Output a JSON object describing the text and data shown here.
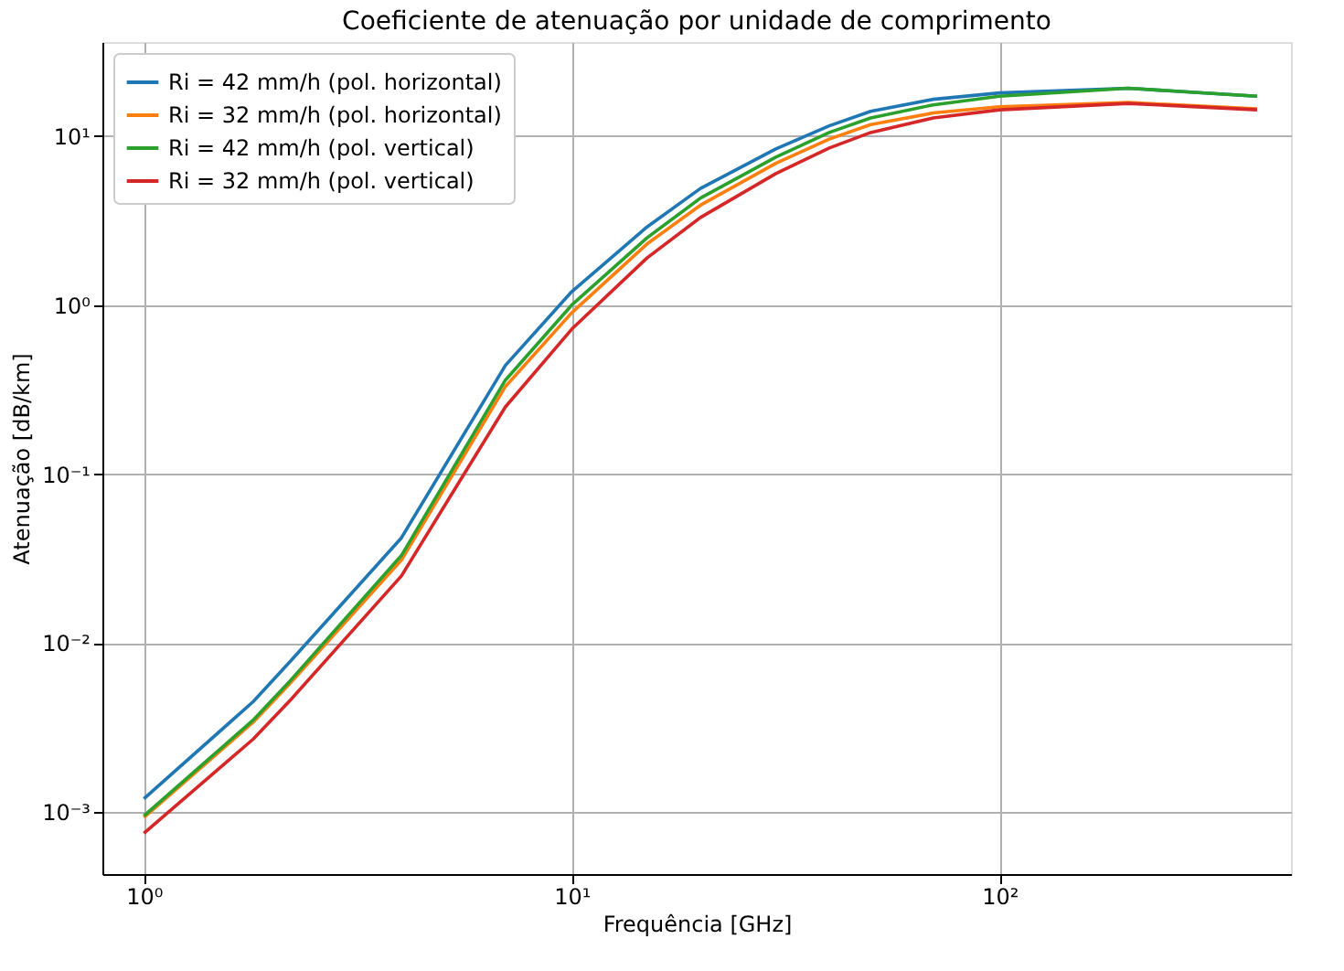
{
  "chart_data": {
    "type": "line",
    "title": "Coeficiente de atenuação por unidade de comprimento",
    "xlabel": "Frequência [GHz]",
    "ylabel": "Atenuação [dB/km]",
    "x": [
      1,
      1.8,
      2.2,
      4,
      7,
      10,
      15,
      20,
      30,
      40,
      50,
      70,
      100,
      200,
      400
    ],
    "series": [
      {
        "name": "Ri = 42 mm/h (pol. horizontal)",
        "color": "#1f77b4",
        "values": [
          0.0012,
          0.0045,
          0.0078,
          0.042,
          0.44,
          1.2,
          2.9,
          4.9,
          8.4,
          11.5,
          14,
          16.5,
          18,
          19.2,
          17.2
        ]
      },
      {
        "name": "Ri = 32 mm/h (pol. horizontal)",
        "color": "#ff7f0e",
        "values": [
          0.00093,
          0.0034,
          0.0058,
          0.031,
          0.33,
          0.9,
          2.3,
          3.9,
          6.9,
          9.6,
          11.7,
          13.7,
          14.9,
          15.8,
          14.5
        ]
      },
      {
        "name": "Ri = 42 mm/h (pol. vertical)",
        "color": "#2ca02c",
        "values": [
          0.00095,
          0.0035,
          0.006,
          0.033,
          0.36,
          1.0,
          2.5,
          4.3,
          7.5,
          10.5,
          12.8,
          15.3,
          17.2,
          19.2,
          17.2
        ]
      },
      {
        "name": "Ri = 32 mm/h (pol. vertical)",
        "color": "#d62728",
        "values": [
          0.00075,
          0.0027,
          0.0046,
          0.025,
          0.25,
          0.72,
          1.9,
          3.3,
          6.0,
          8.5,
          10.5,
          12.8,
          14.3,
          15.6,
          14.3
        ]
      }
    ],
    "log": "xy",
    "grid": true,
    "legend": "top left",
    "marker": "none",
    "line_style": "solid",
    "xlim": [
      0.8,
      480
    ],
    "ylim": [
      0.00043,
      36
    ],
    "xticks": [
      {
        "value": 1,
        "label": "10⁰"
      },
      {
        "value": 10,
        "label": "10¹"
      },
      {
        "value": 100,
        "label": "10²"
      }
    ],
    "yticks": [
      {
        "value": 0.001,
        "label": "10⁻³"
      },
      {
        "value": 0.01,
        "label": "10⁻²"
      },
      {
        "value": 0.1,
        "label": "10⁻¹"
      },
      {
        "value": 1,
        "label": "10⁰"
      },
      {
        "value": 10,
        "label": "10¹"
      }
    ]
  }
}
